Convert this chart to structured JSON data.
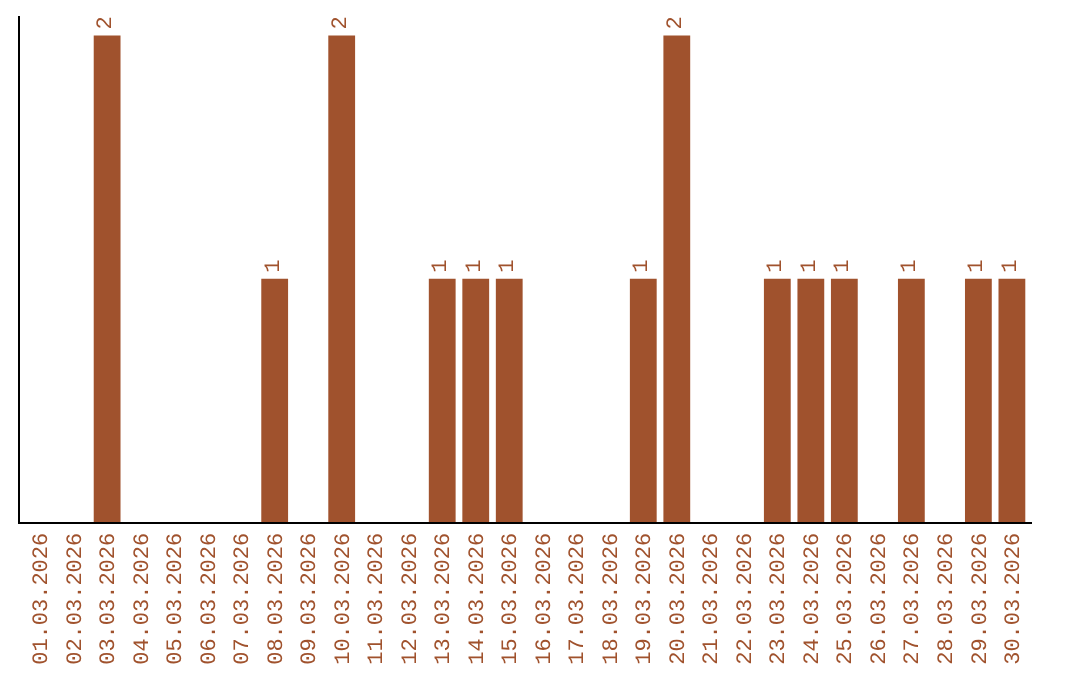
{
  "chart_data": {
    "type": "bar",
    "categories": [
      "01.03.2026",
      "02.03.2026",
      "03.03.2026",
      "04.03.2026",
      "05.03.2026",
      "06.03.2026",
      "07.03.2026",
      "08.03.2026",
      "09.03.2026",
      "10.03.2026",
      "11.03.2026",
      "12.03.2026",
      "13.03.2026",
      "14.03.2026",
      "15.03.2026",
      "16.03.2026",
      "17.03.2026",
      "18.03.2026",
      "19.03.2026",
      "20.03.2026",
      "21.03.2026",
      "22.03.2026",
      "23.03.2026",
      "24.03.2026",
      "25.03.2026",
      "26.03.2026",
      "27.03.2026",
      "28.03.2026",
      "29.03.2026",
      "30.03.2026"
    ],
    "values": [
      0,
      0,
      2,
      0,
      0,
      0,
      0,
      1,
      0,
      2,
      0,
      0,
      1,
      1,
      1,
      0,
      0,
      0,
      1,
      2,
      0,
      0,
      1,
      1,
      1,
      0,
      1,
      0,
      1,
      1
    ],
    "value_labels": [
      null,
      null,
      "2",
      null,
      null,
      null,
      null,
      "1",
      null,
      "2",
      null,
      null,
      "1",
      "1",
      "1",
      null,
      null,
      null,
      "1",
      "2",
      null,
      null,
      "1",
      "1",
      "1",
      null,
      "1",
      null,
      "1",
      "1"
    ],
    "color": "#a0522d",
    "ylim": [
      0,
      2.08
    ],
    "tick_labels": "x"
  }
}
